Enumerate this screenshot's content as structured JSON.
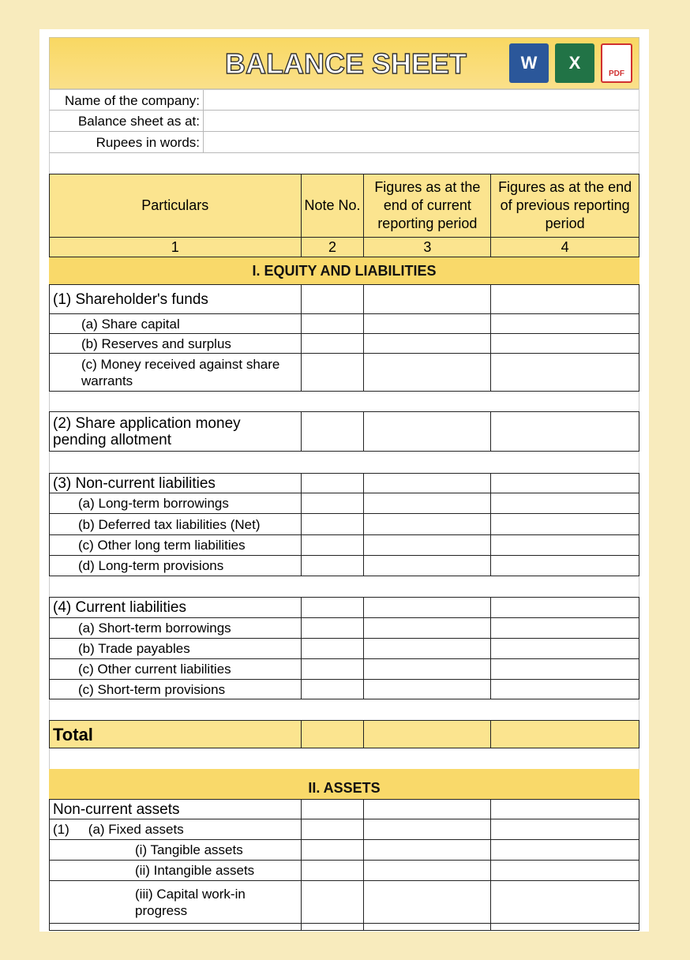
{
  "title": "BALANCE SHEET",
  "icons": [
    {
      "name": "word-icon",
      "letter": "W",
      "color": "#2b579a"
    },
    {
      "name": "excel-icon",
      "letter": "X",
      "color": "#217346"
    },
    {
      "name": "pdf-icon",
      "letter": "PDF",
      "color": "#d03030"
    }
  ],
  "info": {
    "company": "Name of the company:",
    "date": "Balance sheet as at:",
    "rupees": "Rupees in words:"
  },
  "header": {
    "c1": "Particulars",
    "c2": "Note No.",
    "c3": "Figures as at the end of current reporting period",
    "c4": "Figures as at the end of previous reporting period",
    "n1": "1",
    "n2": "2",
    "n3": "3",
    "n4": "4"
  },
  "section1": "I. EQUITY AND LIABILITIES",
  "rows": {
    "sf": "(1) Shareholder's funds",
    "sf_a": "(a) Share capital",
    "sf_b": "(b) Reserves and surplus",
    "sf_c": "(c) Money received against share warrants",
    "sa": "(2) Share application money pending allotment",
    "ncl": "(3) Non-current liabilities",
    "ncl_a": "(a) Long-term borrowings",
    "ncl_b": "(b) Deferred tax liabilities (Net)",
    "ncl_c": "(c) Other long term liabilities",
    "ncl_d": "(d) Long-term provisions",
    "cl": "(4) Current liabilities",
    "cl_a": "(a) Short-term borrowings",
    "cl_b": "(b) Trade payables",
    "cl_c": "(c) Other current liabilities",
    "cl_d": "(c) Short-term provisions",
    "total": "Total"
  },
  "section2": "II. ASSETS",
  "assets": {
    "nca": "Non-current assets",
    "fa_num": "(1)",
    "fa": "(a) Fixed assets",
    "t": "(i) Tangible assets",
    "i": "(ii) Intangible assets",
    "cw": "(iii) Capital work-in progress"
  }
}
